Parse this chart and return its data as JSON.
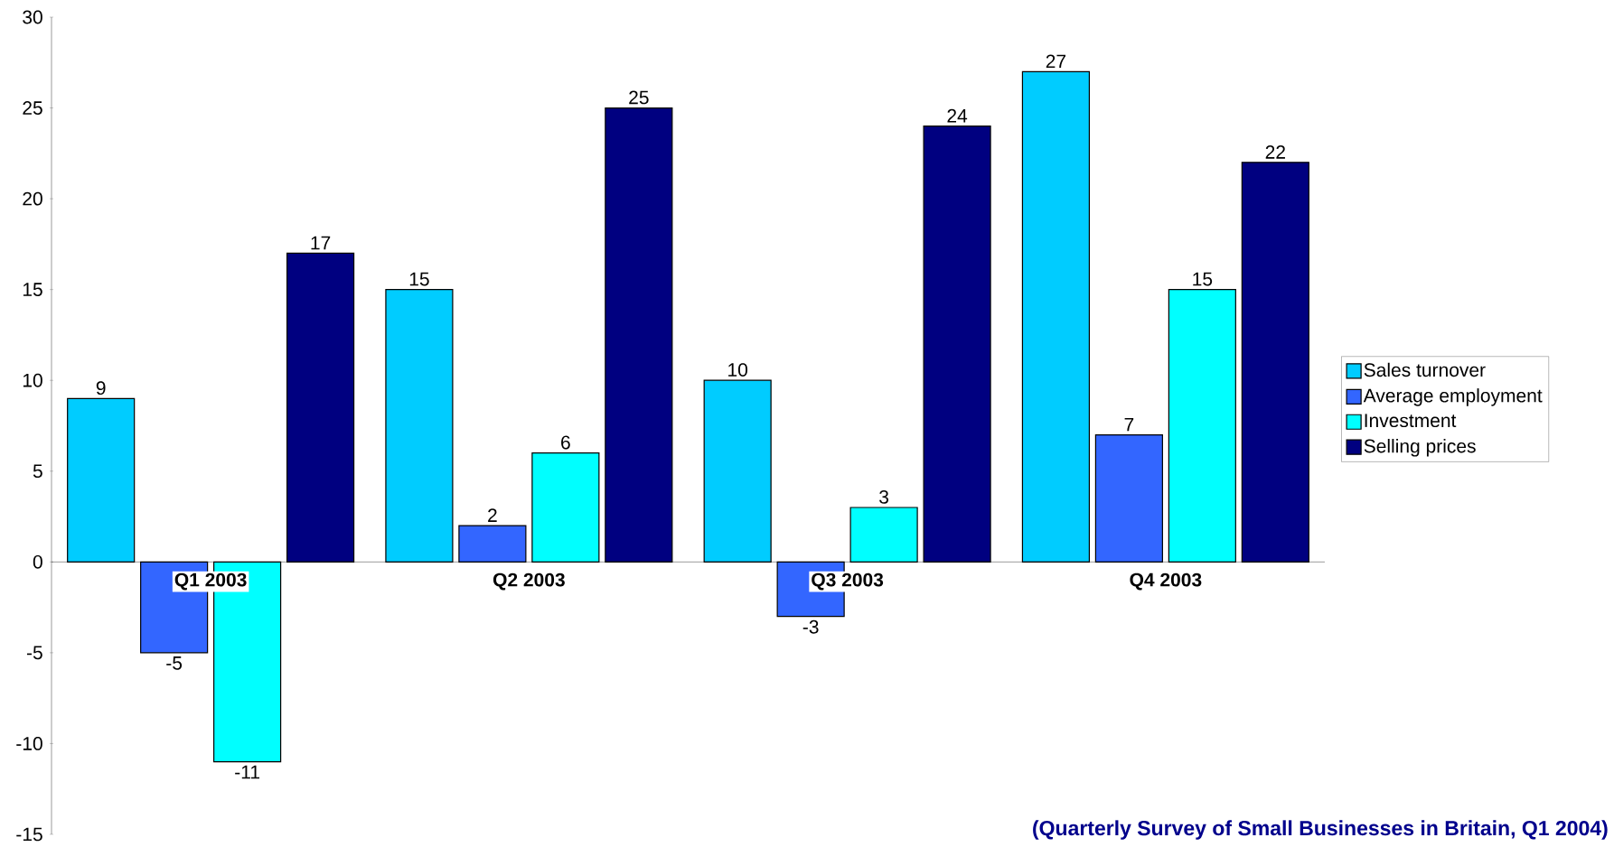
{
  "chart_data": {
    "type": "bar",
    "categories": [
      "Q1 2003",
      "Q2 2003",
      "Q3 2003",
      "Q4 2003"
    ],
    "series": [
      {
        "name": "Sales turnover",
        "color": "#00ccff",
        "values": [
          9,
          15,
          10,
          27
        ]
      },
      {
        "name": "Average employment",
        "color": "#3366ff",
        "values": [
          -5,
          2,
          -3,
          7
        ]
      },
      {
        "name": "Investment",
        "color": "#00ffff",
        "values": [
          -11,
          6,
          3,
          15
        ]
      },
      {
        "name": "Selling prices",
        "color": "#000080",
        "values": [
          17,
          25,
          24,
          22
        ]
      }
    ],
    "ylim": [
      -15,
      30
    ],
    "yticks": [
      -15,
      -10,
      -5,
      0,
      5,
      10,
      15,
      20,
      25,
      30
    ],
    "data_labels": true,
    "legend": "right",
    "annotations": [
      "(Quarterly Survey of Small Businesses in Britain, Q1 2004)"
    ]
  }
}
